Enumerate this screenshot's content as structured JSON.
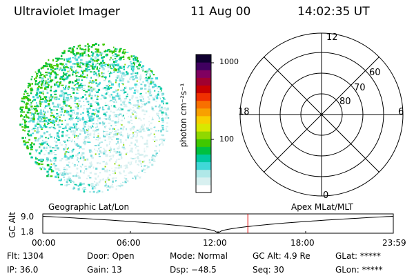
{
  "header": {
    "instrument": "Ultraviolet Imager",
    "date": "11 Aug 00",
    "time": "14:02:35 UT"
  },
  "colorbar": {
    "unit_label": "photon cm⁻²s⁻¹",
    "ticks": [
      {
        "value": 1000,
        "label": "1000"
      },
      {
        "value": 100,
        "label": "100"
      }
    ],
    "log_scale": true,
    "colors": [
      "#ffffff",
      "#d8f0f0",
      "#b0e8e8",
      "#40d8d8",
      "#00c8a0",
      "#00c040",
      "#40c800",
      "#90d800",
      "#d8e800",
      "#f8d000",
      "#f8a000",
      "#f87000",
      "#f03000",
      "#c80000",
      "#a00030",
      "#800060",
      "#400060",
      "#100030"
    ]
  },
  "polar_plot": {
    "mlt_labels": {
      "top": "12",
      "left": "18",
      "right": "6",
      "bottom": "0"
    },
    "lat_labels": [
      "60",
      "70",
      "80"
    ]
  },
  "timeline": {
    "left_label": "Geographic Lat/Lon",
    "right_label": "Apex MLat/MLT",
    "y_axis_label": "GC Alt",
    "y_ticks": [
      "9.0",
      "1.8"
    ],
    "x_ticks": [
      "00:00",
      "06:00",
      "12:00",
      "18:00",
      "23:59"
    ],
    "current_time_hours": 14.04,
    "marker_color": "#e00000"
  },
  "status": {
    "flt": "Flt: 1304",
    "ip": "IP: 36.0",
    "door": "Door: Open",
    "gain": "Gain: 13",
    "mode": "Mode: Normal",
    "dsp": "Dsp:  −48.5",
    "gc_alt": "GC Alt: 4.9 Re",
    "seq": "Seq: 30",
    "glat": "GLat: *****",
    "glon": "GLon: *****"
  }
}
